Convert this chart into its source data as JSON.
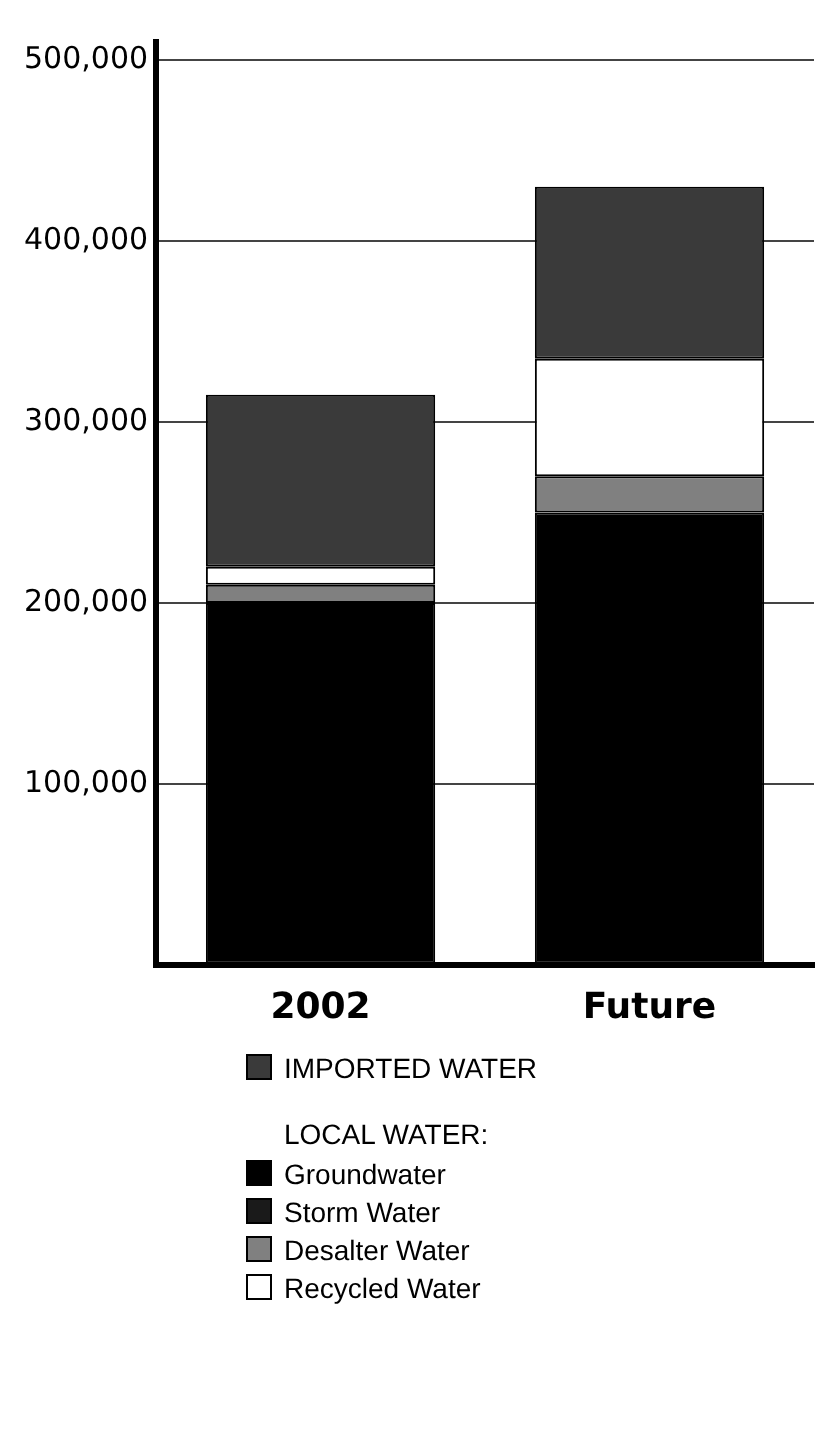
{
  "chart_data": {
    "type": "bar",
    "stacked": true,
    "categories": [
      "2002",
      "Future"
    ],
    "series": [
      {
        "name": "Groundwater",
        "color": "#000000",
        "values": [
          200000,
          250000
        ]
      },
      {
        "name": "Storm Water",
        "color": "#1a1a1a",
        "values": [
          0,
          0
        ]
      },
      {
        "name": "Desalter Water",
        "color": "#808080",
        "values": [
          10000,
          20000
        ]
      },
      {
        "name": "Recycled Water",
        "color": "#ffffff",
        "values": [
          10000,
          65000
        ]
      },
      {
        "name": "IMPORTED WATER",
        "color": "#3a3a3a",
        "values": [
          95000,
          95000
        ]
      }
    ],
    "legend_title": "LOCAL WATER:",
    "legend": "bottom",
    "ylim": [
      0,
      510000
    ],
    "yticks": [
      {
        "value": 0,
        "label": null
      },
      {
        "value": 100000,
        "label": "100,000"
      },
      {
        "value": 200000,
        "label": "200,000"
      },
      {
        "value": 300000,
        "label": "300,000"
      },
      {
        "value": 400000,
        "label": "400,000"
      },
      {
        "value": 500000,
        "label": "500,000"
      }
    ],
    "grid": "y"
  }
}
